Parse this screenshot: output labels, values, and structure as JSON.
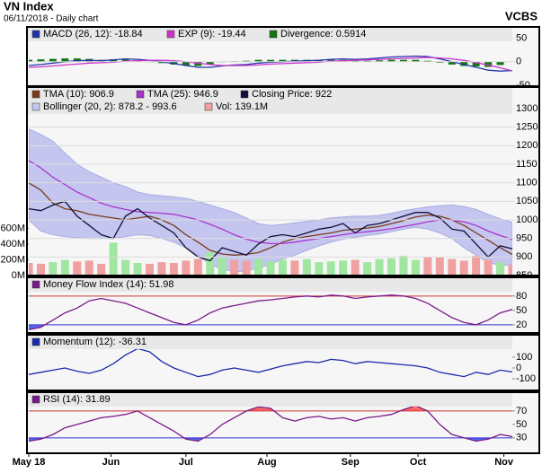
{
  "header": {
    "title": "VN Index",
    "subtitle": "06/11/2018 - Daily chart",
    "brand": "VCBS"
  },
  "chart_data": [
    {
      "type": "macd",
      "xlim": [
        0,
        40
      ],
      "ylim": [
        -52,
        74
      ],
      "yticks": [
        -50,
        0,
        50
      ],
      "grid": true,
      "series": [
        {
          "name": "MACD (26, 12): -18.84",
          "color": "#2233aa",
          "values": [
            -8,
            -6,
            -3,
            0,
            2,
            3,
            2,
            4,
            6,
            5,
            3,
            0,
            -4,
            -8,
            -12,
            -12,
            -9,
            -7,
            -6,
            -3,
            -1,
            0,
            1,
            2,
            3,
            5,
            6,
            5,
            6,
            8,
            10,
            11,
            12,
            11,
            6,
            0,
            -6,
            -12,
            -18,
            -20,
            -18.84
          ]
        },
        {
          "name": "EXP (9): -19.44",
          "color": "#cc33cc",
          "values": [
            -12,
            -11,
            -9,
            -7,
            -5,
            -3,
            -2,
            -1,
            1,
            2,
            3,
            3,
            2,
            0,
            -3,
            -6,
            -8,
            -8,
            -8,
            -7,
            -5,
            -4,
            -3,
            -2,
            -1,
            1,
            2,
            3,
            4,
            5,
            6,
            7,
            8,
            9,
            8,
            6,
            3,
            -2,
            -7,
            -13,
            -19.44
          ]
        },
        {
          "name": "Divergence: 0.5914",
          "color": "#117711",
          "style": "bar",
          "values": [
            4,
            5,
            6,
            7,
            7,
            6,
            4,
            5,
            5,
            3,
            0,
            -3,
            -6,
            -8,
            -9,
            -6,
            -1,
            1,
            2,
            4,
            4,
            4,
            4,
            4,
            4,
            4,
            4,
            2,
            2,
            3,
            4,
            4,
            4,
            2,
            -2,
            -6,
            -9,
            -10,
            -11,
            -7,
            0.5914
          ]
        }
      ]
    },
    {
      "type": "price",
      "xlim": [
        0,
        40
      ],
      "ylim": [
        850,
        1358
      ],
      "yticks": [
        850,
        900,
        950,
        1000,
        1050,
        1100,
        1150,
        1200,
        1250,
        1300
      ],
      "grid": true,
      "y2lim": [
        0,
        2400
      ],
      "y2ticks": [
        {
          "value": 0,
          "label": "0M"
        },
        {
          "value": 200,
          "label": "200M"
        },
        {
          "value": 400,
          "label": "400M"
        },
        {
          "value": 600,
          "label": "600M"
        }
      ],
      "series": [
        {
          "name": "Bollinger (20, 2): 878.2 - 993.6",
          "color": "#c4c6f0",
          "values": [
            1245,
            1230,
            1212,
            1180,
            1150,
            1130,
            1115,
            1100,
            1090,
            1075,
            1068,
            1065,
            1062,
            1058,
            1050,
            1040,
            1030,
            1020,
            1005,
            990,
            985,
            988,
            992,
            996,
            1000,
            1005,
            1008,
            1010,
            1010,
            1012,
            1018,
            1025,
            1030,
            1035,
            1038,
            1040,
            1036,
            1028,
            1015,
            1003,
            993.6
          ],
          "lower": [
            1000,
            970,
            960,
            955,
            952,
            950,
            950,
            950,
            955,
            960,
            958,
            950,
            940,
            925,
            905,
            880,
            868,
            860,
            862,
            870,
            880,
            895,
            905,
            918,
            930,
            940,
            948,
            953,
            958,
            962,
            968,
            975,
            980,
            975,
            965,
            950,
            925,
            905,
            885,
            878,
            878.2
          ]
        },
        {
          "name": "Vol: 139.1M",
          "color": "#f0a0a0",
          "axis": "y2",
          "values": [
            160,
            150,
            170,
            200,
            180,
            190,
            150,
            420,
            200,
            160,
            150,
            170,
            160,
            190,
            210,
            300,
            230,
            200,
            190,
            210,
            180,
            200,
            190,
            210,
            170,
            180,
            190,
            200,
            170,
            210,
            220,
            250,
            200,
            240,
            230,
            210,
            190,
            250,
            200,
            170,
            139.1
          ],
          "colors": [
            "#f0a0a0",
            "#f0a0a0",
            "#a0e6a0",
            "#a0e6a0",
            "#f0a0a0",
            "#f0a0a0",
            "#f0a0a0",
            "#a0e6a0",
            "#a0e6a0",
            "#a0e6a0",
            "#f0a0a0",
            "#f0a0a0",
            "#f0a0a0",
            "#f0a0a0",
            "#f0a0a0",
            "#a0e6a0",
            "#a0e6a0",
            "#f0a0a0",
            "#f0a0a0",
            "#a0e6a0",
            "#a0e6a0",
            "#a0e6a0",
            "#f0a0a0",
            "#a0e6a0",
            "#a0e6a0",
            "#a0e6a0",
            "#a0e6a0",
            "#f0a0a0",
            "#a0e6a0",
            "#a0e6a0",
            "#a0e6a0",
            "#a0e6a0",
            "#a0e6a0",
            "#f0a0a0",
            "#f0a0a0",
            "#f0a0a0",
            "#f0a0a0",
            "#f0a0a0",
            "#f0a0a0",
            "#a0e6a0",
            "#f0a0a0"
          ]
        },
        {
          "name": "TMA (10): 906.9",
          "color": "#7a3b1a",
          "values": [
            1100,
            1080,
            1045,
            1030,
            1025,
            1015,
            1010,
            1005,
            1000,
            1005,
            1010,
            1000,
            985,
            960,
            940,
            918,
            908,
            905,
            907,
            912,
            925,
            940,
            950,
            955,
            960,
            965,
            972,
            975,
            978,
            982,
            990,
            998,
            1008,
            1013,
            1010,
            1000,
            985,
            965,
            945,
            925,
            906.9
          ]
        },
        {
          "name": "TMA (25): 946.9",
          "color": "#aa33cc",
          "values": [
            1160,
            1140,
            1115,
            1095,
            1075,
            1060,
            1045,
            1035,
            1028,
            1022,
            1020,
            1018,
            1015,
            1008,
            1000,
            988,
            975,
            960,
            948,
            940,
            936,
            936,
            940,
            945,
            950,
            955,
            960,
            965,
            968,
            972,
            976,
            982,
            988,
            995,
            1000,
            1000,
            995,
            985,
            970,
            958,
            946.9
          ]
        },
        {
          "name": "Closing Price: 922",
          "color": "#10103a",
          "values": [
            1030,
            1025,
            1040,
            1050,
            1010,
            985,
            960,
            950,
            1010,
            1030,
            1005,
            985,
            965,
            925,
            900,
            890,
            925,
            915,
            905,
            935,
            955,
            960,
            955,
            965,
            975,
            980,
            990,
            965,
            985,
            990,
            1000,
            1010,
            1020,
            1020,
            1005,
            975,
            970,
            935,
            900,
            930,
            922
          ]
        }
      ]
    },
    {
      "type": "oscillator",
      "xlim": [
        0,
        40
      ],
      "ylim": [
        3,
        119
      ],
      "yticks": [
        20,
        50,
        80
      ],
      "reference_lines": [
        {
          "value": 80,
          "side": "above",
          "color": "#cc3333",
          "fill": "#ff6666"
        },
        {
          "value": 20,
          "side": "below",
          "color": "#3333cc",
          "fill": "#5566ee"
        }
      ],
      "series": [
        {
          "name": "Money Flow Index (14): 51.98",
          "color": "#7a1a8a",
          "values": [
            10,
            15,
            30,
            45,
            55,
            70,
            75,
            70,
            65,
            55,
            45,
            35,
            25,
            20,
            30,
            45,
            55,
            60,
            65,
            70,
            72,
            75,
            78,
            80,
            78,
            82,
            80,
            75,
            78,
            80,
            82,
            80,
            75,
            65,
            50,
            35,
            25,
            20,
            30,
            45,
            51.98
          ]
        }
      ]
    },
    {
      "type": "oscillator",
      "xlim": [
        0,
        40
      ],
      "ylim": [
        -208,
        308
      ],
      "yticks": [
        -100,
        0,
        100
      ],
      "reference_lines": [],
      "series": [
        {
          "name": "Momentum (12): -36.31",
          "color": "#1a2aaa",
          "values": [
            -60,
            -40,
            -20,
            0,
            -30,
            -50,
            -20,
            40,
            120,
            180,
            150,
            60,
            0,
            -40,
            -80,
            -60,
            -20,
            0,
            -20,
            -40,
            -10,
            20,
            40,
            60,
            50,
            80,
            70,
            40,
            60,
            50,
            40,
            30,
            20,
            0,
            -40,
            -60,
            -80,
            -40,
            -60,
            -20,
            -36.31
          ]
        }
      ]
    },
    {
      "type": "oscillator",
      "xlim": [
        0,
        40
      ],
      "ylim": [
        7,
        98
      ],
      "yticks": [
        30,
        50,
        70
      ],
      "reference_lines": [
        {
          "value": 70,
          "side": "above",
          "color": "#cc3333",
          "fill": "#ff6666"
        },
        {
          "value": 30,
          "side": "below",
          "color": "#3333cc",
          "fill": "#5566ee"
        }
      ],
      "xticks": [
        {
          "value": 0,
          "label": "May 18"
        },
        {
          "value": 6.8,
          "label": "Jun"
        },
        {
          "value": 13,
          "label": "Jul"
        },
        {
          "value": 19.7,
          "label": "Aug"
        },
        {
          "value": 26.6,
          "label": "Sep"
        },
        {
          "value": 32.2,
          "label": "Oct"
        },
        {
          "value": 39.3,
          "label": "Nov"
        }
      ],
      "series": [
        {
          "name": "RSI (14): 31.89",
          "color": "#7a1a8a",
          "values": [
            25,
            28,
            35,
            45,
            50,
            55,
            60,
            62,
            65,
            70,
            60,
            50,
            40,
            28,
            25,
            35,
            50,
            60,
            70,
            76,
            74,
            60,
            55,
            60,
            62,
            58,
            60,
            55,
            60,
            62,
            65,
            72,
            78,
            70,
            50,
            35,
            30,
            25,
            28,
            35,
            31.89
          ]
        }
      ]
    }
  ]
}
